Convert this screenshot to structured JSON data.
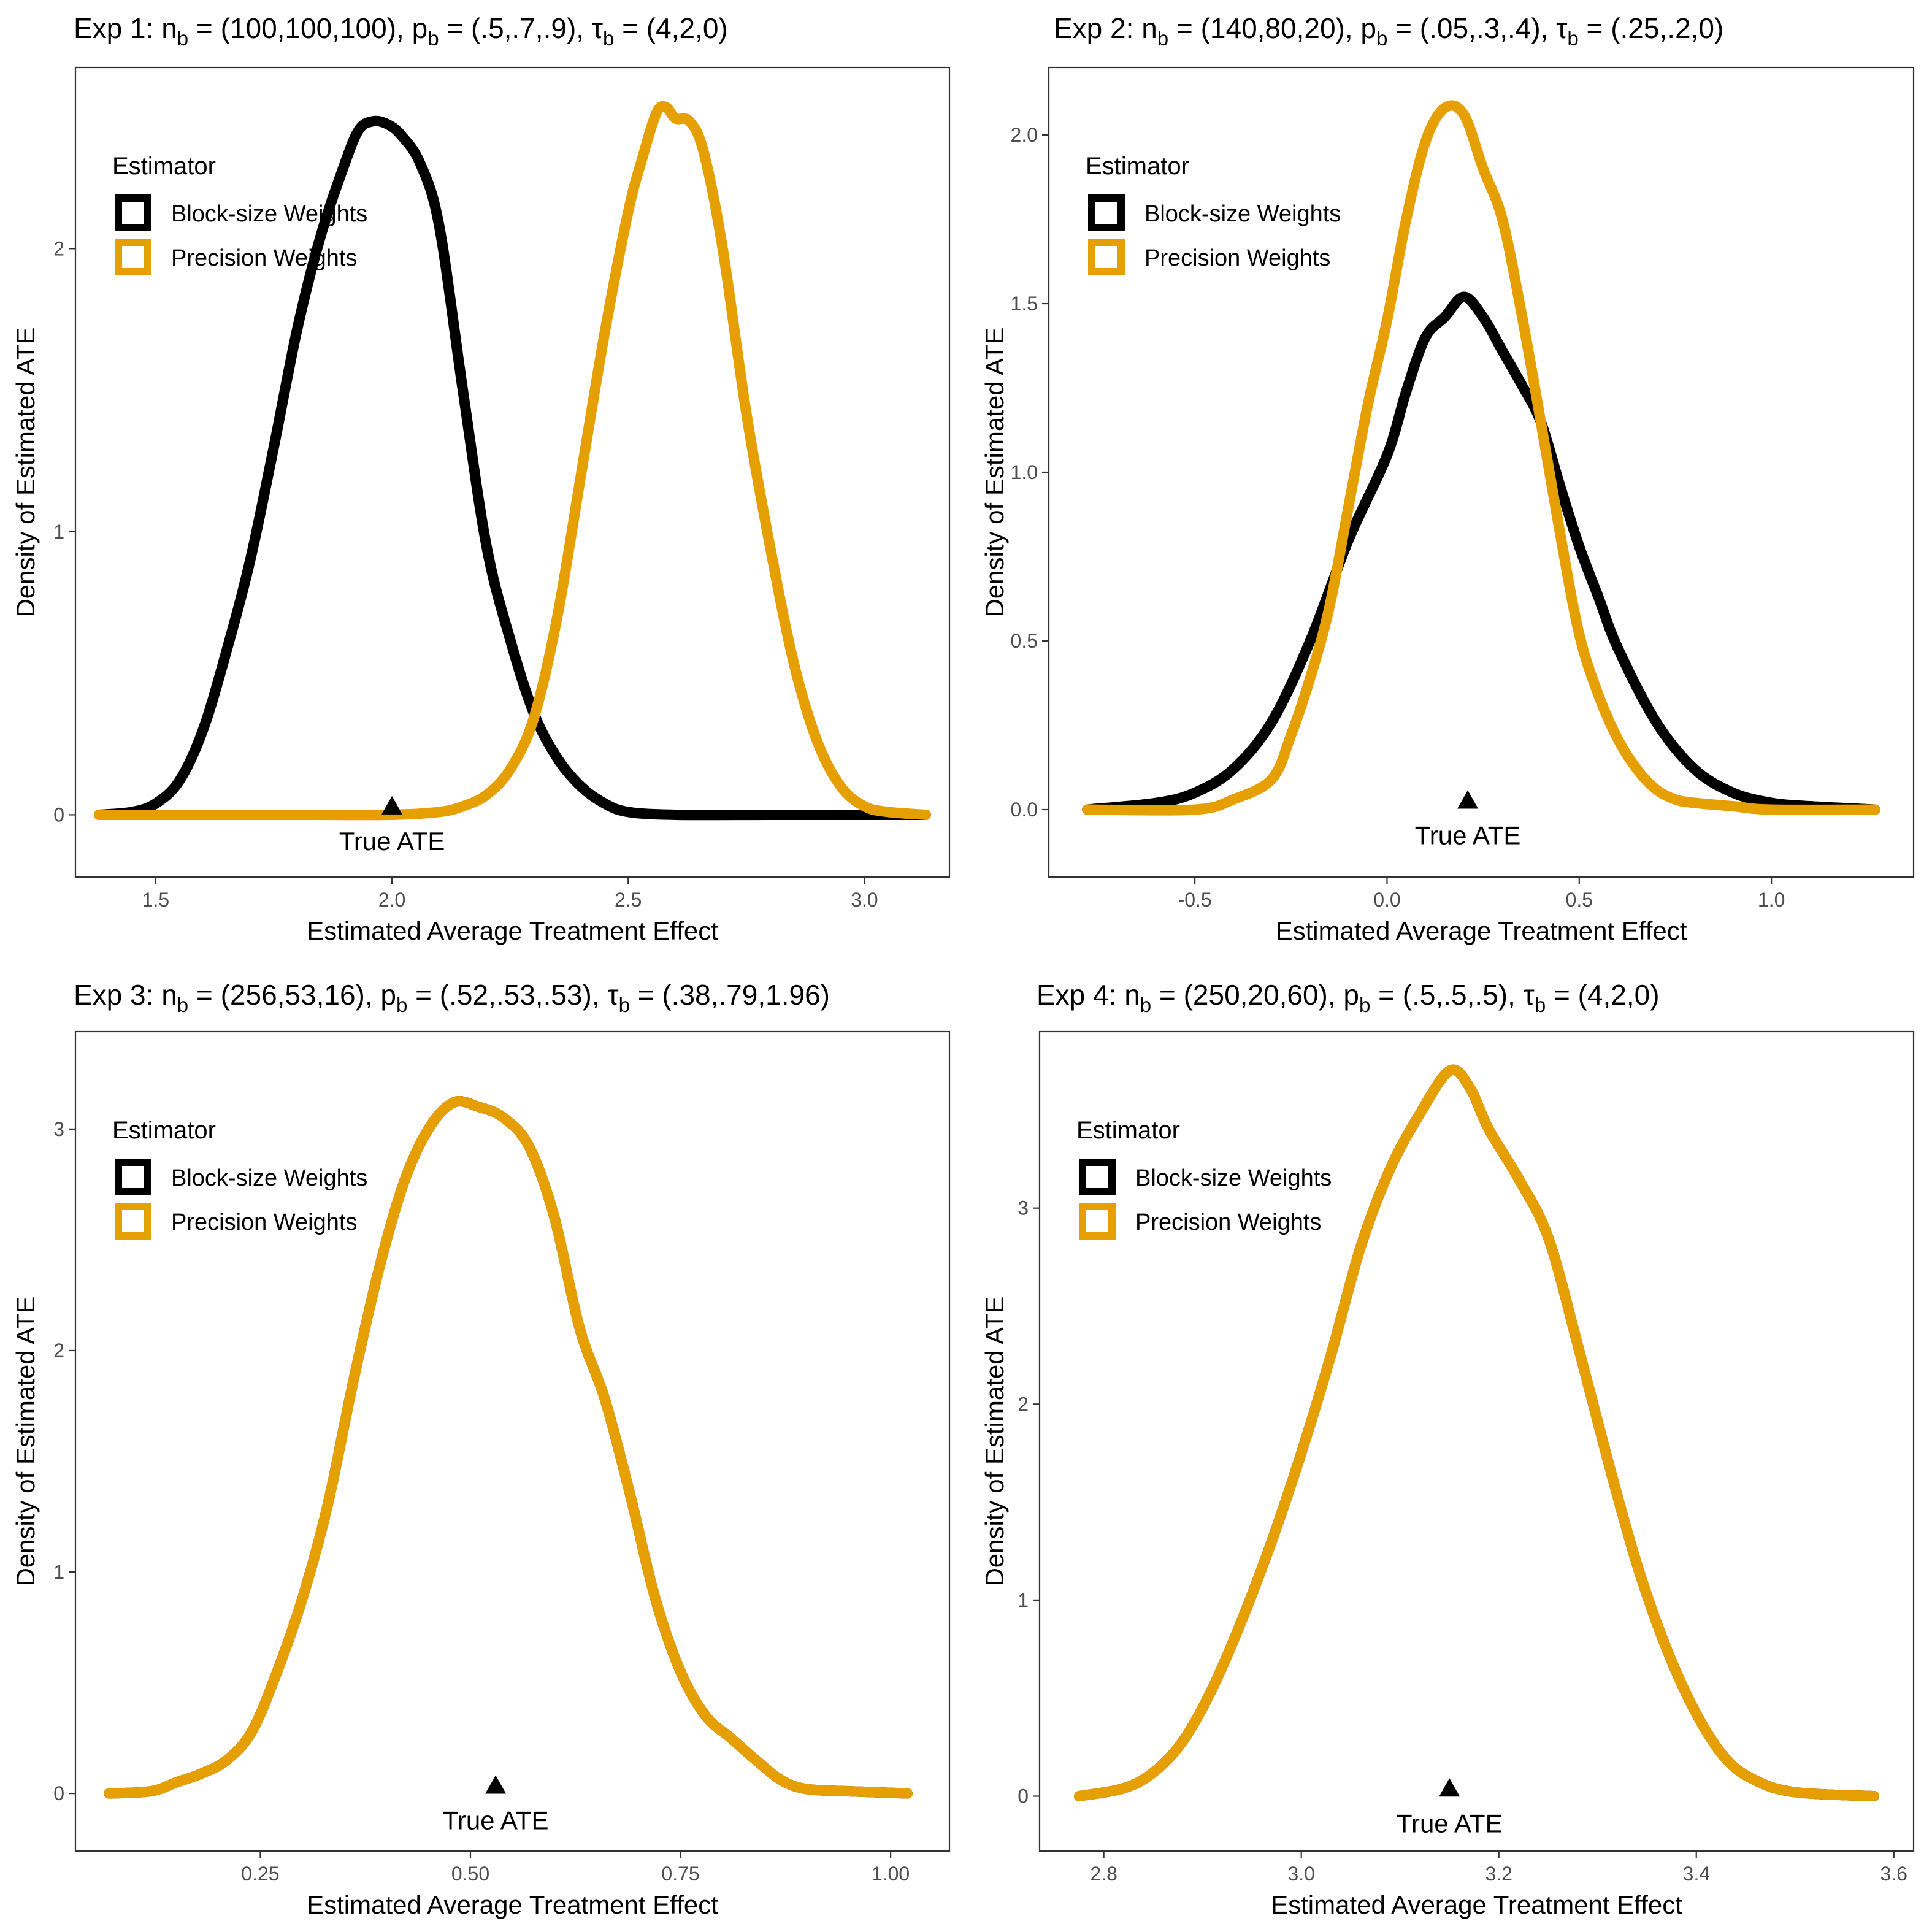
{
  "colors": {
    "Block-size Weights": "#000000",
    "Precision Weights": "#E69F00"
  },
  "chart_data": [
    {
      "type": "line",
      "title": {
        "prefix": "Exp 1: ",
        "parts": [
          {
            "text": "n",
            "sub": "b",
            "value": " = (100,100,100), "
          },
          {
            "text": "p",
            "sub": "b",
            "value": " = (.5,.7,.9), "
          },
          {
            "text": "τ",
            "sub": "b",
            "value": " = (4,2,0)"
          }
        ]
      },
      "xlabel": "Estimated Average Treatment Effect",
      "ylabel": "Density of Estimated ATE",
      "xlim": [
        1.33,
        3.18
      ],
      "ylim": [
        -0.22,
        2.64
      ],
      "xticks": [
        1.5,
        2.0,
        2.5,
        3.0
      ],
      "xtick_labels": [
        "1.5",
        "2.0",
        "2.5",
        "3.0"
      ],
      "yticks": [
        0,
        1,
        2
      ],
      "ytick_labels": [
        "0",
        "1",
        "2"
      ],
      "grid": false,
      "legend": {
        "title": "Estimator",
        "position": "top-left",
        "entries": [
          "Block-size Weights",
          "Precision Weights"
        ]
      },
      "annotation": {
        "label": "True ATE",
        "x": 2.0,
        "y": 0.01,
        "marker": "triangle"
      },
      "series": [
        {
          "name": "Block-size Weights",
          "color": "#000000",
          "x": [
            1.38,
            1.45,
            1.5,
            1.55,
            1.6,
            1.65,
            1.7,
            1.75,
            1.8,
            1.85,
            1.9,
            1.93,
            1.96,
            1.99,
            2.02,
            2.06,
            2.1,
            2.15,
            2.2,
            2.25,
            2.3,
            2.35,
            2.4,
            2.45,
            2.5,
            2.6,
            2.8,
            3.0,
            3.13
          ],
          "y": [
            0.0,
            0.01,
            0.04,
            0.12,
            0.3,
            0.58,
            0.9,
            1.3,
            1.72,
            2.05,
            2.3,
            2.42,
            2.45,
            2.44,
            2.4,
            2.3,
            2.08,
            1.5,
            0.95,
            0.62,
            0.36,
            0.2,
            0.1,
            0.04,
            0.01,
            0.0,
            0.0,
            0.0,
            0.0
          ]
        },
        {
          "name": "Precision Weights",
          "color": "#E69F00",
          "x": [
            1.38,
            1.6,
            1.8,
            2.0,
            2.1,
            2.15,
            2.2,
            2.25,
            2.3,
            2.35,
            2.4,
            2.45,
            2.5,
            2.53,
            2.56,
            2.58,
            2.6,
            2.63,
            2.66,
            2.7,
            2.75,
            2.8,
            2.85,
            2.9,
            2.95,
            3.0,
            3.05,
            3.13
          ],
          "y": [
            0.0,
            0.0,
            0.0,
            0.0,
            0.01,
            0.03,
            0.07,
            0.16,
            0.34,
            0.7,
            1.2,
            1.7,
            2.13,
            2.32,
            2.48,
            2.5,
            2.46,
            2.45,
            2.34,
            2.0,
            1.42,
            0.95,
            0.54,
            0.26,
            0.1,
            0.03,
            0.01,
            0.0
          ]
        }
      ]
    },
    {
      "type": "line",
      "title": {
        "prefix": "Exp 2: ",
        "parts": [
          {
            "text": "n",
            "sub": "b",
            "value": " = (140,80,20), "
          },
          {
            "text": "p",
            "sub": "b",
            "value": " = (.05,.3,.4), "
          },
          {
            "text": "τ",
            "sub": "b",
            "value": " = (.25,.2,0)"
          }
        ]
      },
      "xlabel": "Estimated Average Treatment Effect",
      "ylabel": "Density of Estimated ATE",
      "xlim": [
        -0.88,
        1.37
      ],
      "ylim": [
        -0.2,
        2.2
      ],
      "xticks": [
        -0.5,
        0.0,
        0.5,
        1.0
      ],
      "xtick_labels": [
        "-0.5",
        "0.0",
        "0.5",
        "1.0"
      ],
      "yticks": [
        0.0,
        0.5,
        1.0,
        1.5,
        2.0
      ],
      "ytick_labels": [
        "0.0",
        "0.5",
        "1.0",
        "1.5",
        "2.0"
      ],
      "grid": false,
      "legend": {
        "title": "Estimator",
        "position": "top-left",
        "entries": [
          "Block-size Weights",
          "Precision Weights"
        ]
      },
      "annotation": {
        "label": "True ATE",
        "x": 0.21,
        "y": 0.01,
        "marker": "triangle"
      },
      "series": [
        {
          "name": "Block-size Weights",
          "color": "#000000",
          "x": [
            -0.78,
            -0.6,
            -0.5,
            -0.4,
            -0.3,
            -0.2,
            -0.1,
            0.0,
            0.05,
            0.1,
            0.15,
            0.2,
            0.25,
            0.3,
            0.35,
            0.4,
            0.45,
            0.5,
            0.55,
            0.6,
            0.7,
            0.8,
            0.9,
            1.0,
            1.1,
            1.27
          ],
          "y": [
            0.0,
            0.02,
            0.05,
            0.12,
            0.26,
            0.5,
            0.8,
            1.05,
            1.24,
            1.4,
            1.46,
            1.52,
            1.46,
            1.36,
            1.26,
            1.15,
            0.96,
            0.78,
            0.63,
            0.48,
            0.26,
            0.12,
            0.05,
            0.02,
            0.01,
            0.0
          ]
        },
        {
          "name": "Precision Weights",
          "color": "#E69F00",
          "x": [
            -0.78,
            -0.5,
            -0.4,
            -0.3,
            -0.25,
            -0.2,
            -0.15,
            -0.1,
            -0.05,
            0.0,
            0.05,
            0.1,
            0.15,
            0.2,
            0.25,
            0.3,
            0.35,
            0.4,
            0.45,
            0.5,
            0.55,
            0.6,
            0.65,
            0.7,
            0.75,
            0.8,
            0.9,
            1.0,
            1.27
          ],
          "y": [
            0.0,
            0.0,
            0.03,
            0.09,
            0.22,
            0.39,
            0.6,
            0.9,
            1.2,
            1.45,
            1.75,
            1.98,
            2.08,
            2.06,
            1.9,
            1.75,
            1.47,
            1.15,
            0.82,
            0.52,
            0.34,
            0.21,
            0.12,
            0.06,
            0.03,
            0.02,
            0.01,
            0.0,
            0.0
          ]
        }
      ]
    },
    {
      "type": "line",
      "title": {
        "prefix": "Exp 3: ",
        "parts": [
          {
            "text": "n",
            "sub": "b",
            "value": " = (256,53,16), "
          },
          {
            "text": "p",
            "sub": "b",
            "value": " = (.52,.53,.53), "
          },
          {
            "text": "τ",
            "sub": "b",
            "value": " = (.38,.79,1.96)"
          }
        ]
      },
      "xlabel": "Estimated Average Treatment Effect",
      "ylabel": "Density of Estimated ATE",
      "xlim": [
        0.03,
        1.07
      ],
      "ylim": [
        -0.26,
        3.44
      ],
      "xticks": [
        0.25,
        0.5,
        0.75,
        1.0
      ],
      "xtick_labels": [
        "0.25",
        "0.50",
        "0.75",
        "1.00"
      ],
      "yticks": [
        0,
        1,
        2,
        3
      ],
      "ytick_labels": [
        "0",
        "1",
        "2",
        "3"
      ],
      "grid": false,
      "legend": {
        "title": "Estimator",
        "position": "top-left",
        "entries": [
          "Block-size Weights",
          "Precision Weights"
        ]
      },
      "annotation": {
        "label": "True ATE",
        "x": 0.53,
        "y": 0.01,
        "marker": "triangle"
      },
      "series": [
        {
          "name": "Block-size Weights",
          "color": "#000000",
          "x": [
            0.07,
            0.12,
            0.15,
            0.18,
            0.21,
            0.24,
            0.27,
            0.3,
            0.33,
            0.36,
            0.39,
            0.42,
            0.45,
            0.48,
            0.51,
            0.54,
            0.57,
            0.6,
            0.63,
            0.66,
            0.69,
            0.72,
            0.75,
            0.78,
            0.81,
            0.84,
            0.87,
            0.9,
            0.95,
            1.02
          ],
          "y": [
            0.0,
            0.01,
            0.05,
            0.09,
            0.15,
            0.28,
            0.55,
            0.88,
            1.3,
            1.85,
            2.35,
            2.75,
            3.0,
            3.12,
            3.1,
            3.05,
            2.92,
            2.6,
            2.1,
            1.78,
            1.35,
            0.88,
            0.55,
            0.35,
            0.25,
            0.15,
            0.06,
            0.02,
            0.01,
            0.0
          ]
        },
        {
          "name": "Precision Weights",
          "color": "#E69F00",
          "x": [
            0.07,
            0.12,
            0.15,
            0.18,
            0.21,
            0.24,
            0.27,
            0.3,
            0.33,
            0.36,
            0.39,
            0.42,
            0.45,
            0.48,
            0.51,
            0.54,
            0.57,
            0.6,
            0.63,
            0.66,
            0.69,
            0.72,
            0.75,
            0.78,
            0.81,
            0.84,
            0.87,
            0.9,
            0.95,
            1.02
          ],
          "y": [
            0.0,
            0.01,
            0.05,
            0.09,
            0.15,
            0.28,
            0.55,
            0.88,
            1.3,
            1.85,
            2.35,
            2.75,
            3.0,
            3.12,
            3.1,
            3.05,
            2.92,
            2.6,
            2.1,
            1.78,
            1.35,
            0.88,
            0.55,
            0.35,
            0.25,
            0.15,
            0.06,
            0.02,
            0.01,
            0.0
          ]
        }
      ]
    },
    {
      "type": "line",
      "title": {
        "prefix": "Exp 4: ",
        "parts": [
          {
            "text": "n",
            "sub": "b",
            "value": " = (250,20,60), "
          },
          {
            "text": "p",
            "sub": "b",
            "value": " = (.5,.5,.5), "
          },
          {
            "text": "τ",
            "sub": "b",
            "value": " = (4,2,0)"
          }
        ]
      },
      "xlabel": "Estimated Average Treatment Effect",
      "ylabel": "Density of Estimated ATE",
      "xlim": [
        2.735,
        3.62
      ],
      "ylim": [
        -0.28,
        3.9
      ],
      "xticks": [
        2.8,
        3.0,
        3.2,
        3.4,
        3.6
      ],
      "xtick_labels": [
        "2.8",
        "3.0",
        "3.2",
        "3.4",
        "3.6"
      ],
      "yticks": [
        0,
        1,
        2,
        3
      ],
      "ytick_labels": [
        "0",
        "1",
        "2",
        "3"
      ],
      "grid": false,
      "legend": {
        "title": "Estimator",
        "position": "top-left",
        "entries": [
          "Block-size Weights",
          "Precision Weights"
        ]
      },
      "annotation": {
        "label": "True ATE",
        "x": 3.15,
        "y": 0.01,
        "marker": "triangle"
      },
      "series": [
        {
          "name": "Block-size Weights",
          "color": "#000000",
          "x": [
            2.775,
            2.82,
            2.85,
            2.88,
            2.91,
            2.94,
            2.97,
            3.0,
            3.03,
            3.06,
            3.09,
            3.12,
            3.15,
            3.17,
            3.19,
            3.22,
            3.25,
            3.28,
            3.31,
            3.34,
            3.37,
            3.4,
            3.43,
            3.46,
            3.5,
            3.58
          ],
          "y": [
            0.0,
            0.04,
            0.12,
            0.28,
            0.55,
            0.9,
            1.3,
            1.75,
            2.25,
            2.8,
            3.2,
            3.48,
            3.7,
            3.62,
            3.4,
            3.15,
            2.85,
            2.3,
            1.72,
            1.18,
            0.75,
            0.42,
            0.19,
            0.08,
            0.02,
            0.0
          ]
        },
        {
          "name": "Precision Weights",
          "color": "#E69F00",
          "x": [
            2.775,
            2.82,
            2.85,
            2.88,
            2.91,
            2.94,
            2.97,
            3.0,
            3.03,
            3.06,
            3.09,
            3.12,
            3.15,
            3.17,
            3.19,
            3.22,
            3.25,
            3.28,
            3.31,
            3.34,
            3.37,
            3.4,
            3.43,
            3.46,
            3.5,
            3.58
          ],
          "y": [
            0.0,
            0.04,
            0.12,
            0.28,
            0.55,
            0.9,
            1.3,
            1.75,
            2.25,
            2.8,
            3.2,
            3.48,
            3.7,
            3.62,
            3.4,
            3.15,
            2.85,
            2.3,
            1.72,
            1.18,
            0.75,
            0.42,
            0.19,
            0.08,
            0.02,
            0.0
          ]
        }
      ]
    }
  ]
}
